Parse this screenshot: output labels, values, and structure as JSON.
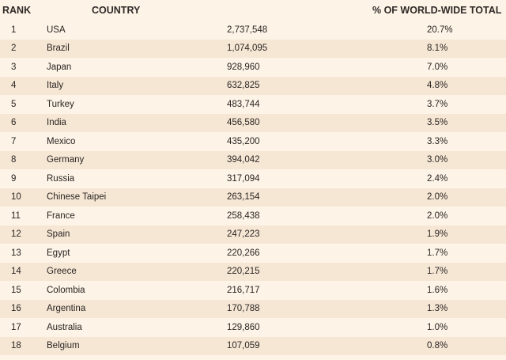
{
  "headers": {
    "rank": "RANK",
    "country": "COUNTRY",
    "pct": "% OF WORLD-WIDE TOTAL"
  },
  "rows": [
    {
      "rank": "1",
      "country": "USA",
      "value": "2,737,548",
      "pct": "20.7%"
    },
    {
      "rank": "2",
      "country": "Brazil",
      "value": "1,074,095",
      "pct": "8.1%"
    },
    {
      "rank": "3",
      "country": "Japan",
      "value": "928,960",
      "pct": "7.0%"
    },
    {
      "rank": "4",
      "country": "Italy",
      "value": "632,825",
      "pct": "4.8%"
    },
    {
      "rank": "5",
      "country": "Turkey",
      "value": "483,744",
      "pct": "3.7%"
    },
    {
      "rank": "6",
      "country": "India",
      "value": "456,580",
      "pct": "3.5%"
    },
    {
      "rank": "7",
      "country": "Mexico",
      "value": "435,200",
      "pct": "3.3%"
    },
    {
      "rank": "8",
      "country": "Germany",
      "value": "394,042",
      "pct": "3.0%"
    },
    {
      "rank": "9",
      "country": "Russia",
      "value": "317,094",
      "pct": "2.4%"
    },
    {
      "rank": "10",
      "country": "Chinese Taipei",
      "value": "263,154",
      "pct": "2.0%"
    },
    {
      "rank": "11",
      "country": "France",
      "value": "258,438",
      "pct": "2.0%"
    },
    {
      "rank": "12",
      "country": "Spain",
      "value": "247,223",
      "pct": "1.9%"
    },
    {
      "rank": "13",
      "country": "Egypt",
      "value": "220,266",
      "pct": "1.7%"
    },
    {
      "rank": "14",
      "country": "Greece",
      "value": "220,215",
      "pct": "1.7%"
    },
    {
      "rank": "15",
      "country": "Colombia",
      "value": "216,717",
      "pct": "1.6%"
    },
    {
      "rank": "16",
      "country": "Argentina",
      "value": "170,788",
      "pct": "1.3%"
    },
    {
      "rank": "17",
      "country": "Australia",
      "value": "129,860",
      "pct": "1.0%"
    },
    {
      "rank": "18",
      "country": "Belgium",
      "value": "107,059",
      "pct": "0.8%"
    }
  ],
  "colors": {
    "background": "#fdf3e7",
    "stripe": "#f6e7d5",
    "text": "#2a2522"
  }
}
